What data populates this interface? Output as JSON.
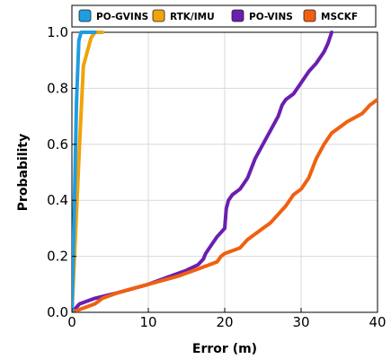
{
  "chart_data": {
    "type": "line",
    "xlabel": "Error (m)",
    "ylabel": "Probability",
    "xlim": [
      0,
      40
    ],
    "ylim": [
      0,
      1.0
    ],
    "grid": true,
    "legend_position": "top",
    "x_ticks": [
      "0",
      "10",
      "20",
      "30",
      "40"
    ],
    "y_ticks": [
      "0.0",
      "0.2",
      "0.4",
      "0.6",
      "0.8",
      "1.0"
    ],
    "series": [
      {
        "name": "PO-GVINS",
        "color": "#1f9de0",
        "x": [
          0.0,
          0.3,
          0.6,
          0.9,
          1.2,
          3.0
        ],
        "y": [
          0.0,
          0.35,
          0.75,
          0.97,
          1.0,
          1.0
        ]
      },
      {
        "name": "RTK/IMU",
        "color": "#f0a30a",
        "x": [
          0.0,
          0.5,
          1.0,
          1.5,
          2.0,
          2.5,
          3.0,
          4.0
        ],
        "y": [
          0.0,
          0.3,
          0.6,
          0.88,
          0.93,
          0.98,
          1.0,
          1.0
        ]
      },
      {
        "name": "PO-VINS",
        "color": "#6a1fb0",
        "x": [
          0.0,
          1.0,
          3.0,
          6.0,
          10.0,
          13.0,
          15.0,
          16.5,
          17.2,
          17.5,
          18.0,
          19.0,
          20.0,
          20.2,
          20.5,
          21.0,
          22.0,
          22.5,
          23.0,
          24.0,
          25.0,
          26.0,
          27.0,
          27.5,
          28.0,
          29.0,
          30.0,
          31.0,
          32.0,
          33.0,
          33.5,
          34.0
        ],
        "y": [
          0.0,
          0.03,
          0.05,
          0.07,
          0.1,
          0.13,
          0.15,
          0.17,
          0.19,
          0.21,
          0.23,
          0.27,
          0.3,
          0.37,
          0.4,
          0.42,
          0.44,
          0.46,
          0.48,
          0.55,
          0.6,
          0.65,
          0.7,
          0.74,
          0.76,
          0.78,
          0.82,
          0.86,
          0.89,
          0.93,
          0.96,
          1.0
        ]
      },
      {
        "name": "MSCKF",
        "color": "#f06010",
        "x": [
          0.0,
          1.0,
          2.0,
          3.0,
          4.0,
          6.0,
          10.0,
          14.0,
          16.0,
          17.0,
          18.0,
          19.0,
          19.5,
          20.0,
          21.0,
          22.0,
          23.0,
          24.0,
          25.0,
          26.0,
          27.0,
          28.0,
          29.0,
          30.0,
          31.0,
          32.0,
          33.0,
          34.0,
          35.0,
          36.0,
          38.0,
          39.0,
          40.0
        ],
        "y": [
          0.0,
          0.01,
          0.02,
          0.03,
          0.05,
          0.07,
          0.1,
          0.13,
          0.15,
          0.16,
          0.17,
          0.18,
          0.2,
          0.21,
          0.22,
          0.23,
          0.26,
          0.28,
          0.3,
          0.32,
          0.35,
          0.38,
          0.42,
          0.44,
          0.48,
          0.55,
          0.6,
          0.64,
          0.66,
          0.68,
          0.71,
          0.74,
          0.76
        ]
      }
    ]
  }
}
